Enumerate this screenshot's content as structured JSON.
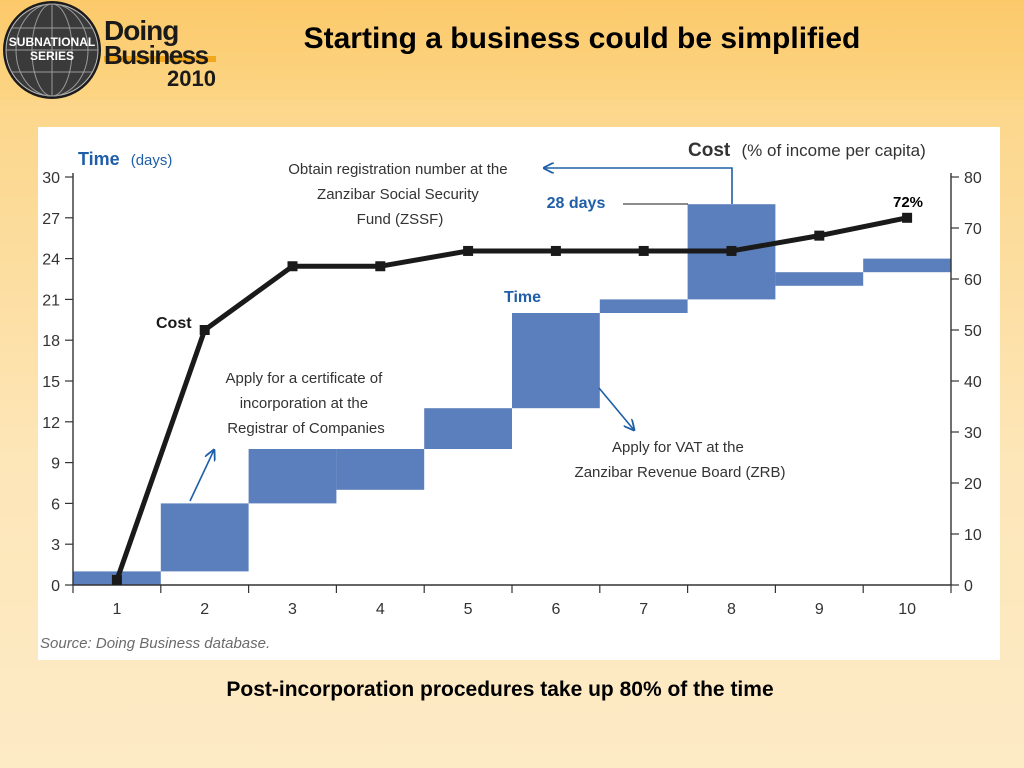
{
  "header": {
    "title": "Starting a business could be simplified",
    "logo": {
      "badge_line1": "SUBNATIONAL",
      "badge_line2": "SERIES",
      "brand_line1": "Doing",
      "brand_line2": "Business",
      "year": "2010"
    }
  },
  "caption": "Post-incorporation procedures take up 80% of the time",
  "chart_data": {
    "type": "bar",
    "categories": [
      "1",
      "2",
      "3",
      "4",
      "5",
      "6",
      "7",
      "8",
      "9",
      "10"
    ],
    "left_axis": {
      "title": "Time",
      "unit": "(days)",
      "ticks": [
        0,
        3,
        6,
        9,
        12,
        15,
        18,
        21,
        24,
        27,
        30
      ],
      "ylim": [
        0,
        30
      ]
    },
    "right_axis": {
      "title": "Cost",
      "unit": "(% of income per capita)",
      "ticks": [
        0,
        10,
        20,
        30,
        40,
        50,
        60,
        70,
        80
      ],
      "ylim": [
        0,
        80
      ]
    },
    "time_bars": [
      {
        "procedure": "1",
        "start": 0,
        "end": 1
      },
      {
        "procedure": "2",
        "start": 1,
        "end": 6
      },
      {
        "procedure": "3",
        "start": 6,
        "end": 10
      },
      {
        "procedure": "4",
        "start": 7,
        "end": 10
      },
      {
        "procedure": "5",
        "start": 10,
        "end": 13
      },
      {
        "procedure": "6",
        "start": 13,
        "end": 20
      },
      {
        "procedure": "7",
        "start": 20,
        "end": 21
      },
      {
        "procedure": "8",
        "start": 21,
        "end": 28
      },
      {
        "procedure": "9",
        "start": 22,
        "end": 23
      },
      {
        "procedure": "10",
        "start": 23,
        "end": 24
      }
    ],
    "cost_series": {
      "values": [
        1,
        50,
        62.5,
        62.5,
        65.5,
        65.5,
        65.5,
        65.5,
        68.5,
        72
      ]
    },
    "series_labels": {
      "time": "Time",
      "cost": "Cost"
    },
    "annotations": {
      "zssf": [
        "Obtain registration number at the",
        "Zanzibar Social Security",
        "Fund (ZSSF)"
      ],
      "days_28": "28 days",
      "pct_72": "72%",
      "certificate": [
        "Apply for a certificate of",
        "incorporation at the",
        "Registrar of Companies"
      ],
      "vat": [
        "Apply for VAT at the",
        "Zanzibar Revenue Board (ZRB)"
      ]
    },
    "colors": {
      "time_bar": "#5b7fbc",
      "cost_line": "#1a1a1a",
      "accent_text": "#1f5ea8"
    },
    "source": "Source: Doing Business database.",
    "grid": false
  }
}
